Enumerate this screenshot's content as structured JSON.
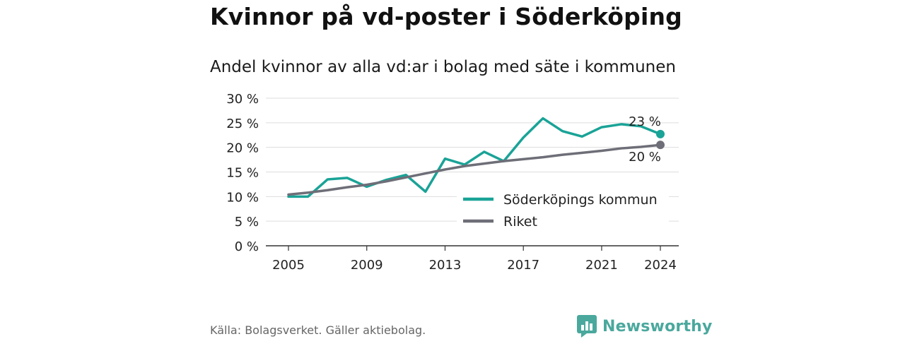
{
  "title": "Kvinnor på vd-poster i Söderköping",
  "subtitle": "Andel kvinnor av alla vd:ar i bolag med säte i kommunen",
  "source": "Källa: Bolagsverket. Gäller aktiebolag.",
  "brand": "Newsworthy",
  "colors": {
    "kommun": "#1aa397",
    "riket": "#6e6e78",
    "grid": "#dddddd",
    "brand": "#4aa89d"
  },
  "chart_data": {
    "type": "line",
    "title": "Andel kvinnor av alla vd:ar i bolag med säte i kommunen",
    "x": [
      2005,
      2006,
      2007,
      2008,
      2009,
      2010,
      2011,
      2012,
      2013,
      2014,
      2015,
      2016,
      2017,
      2018,
      2019,
      2020,
      2021,
      2022,
      2023,
      2024
    ],
    "series": [
      {
        "name": "Söderköpings kommun",
        "values": [
          10.0,
          10.0,
          13.5,
          13.8,
          12.0,
          13.4,
          14.4,
          11.0,
          17.7,
          16.5,
          19.1,
          17.2,
          22.0,
          25.9,
          23.3,
          22.2,
          24.1,
          24.7,
          24.3,
          22.7
        ]
      },
      {
        "name": "Riket",
        "values": [
          10.4,
          10.8,
          11.3,
          11.9,
          12.4,
          13.1,
          13.9,
          14.7,
          15.5,
          16.2,
          16.7,
          17.2,
          17.6,
          18.0,
          18.5,
          18.9,
          19.3,
          19.8,
          20.1,
          20.5
        ]
      }
    ],
    "end_labels": [
      "23 %",
      "20 %"
    ],
    "x_ticks": [
      2005,
      2009,
      2013,
      2017,
      2021,
      2024
    ],
    "x_tick_labels": [
      "2005",
      "2009",
      "2013",
      "2017",
      "2021",
      "2024"
    ],
    "y_ticks": [
      0,
      5,
      10,
      15,
      20,
      25,
      30
    ],
    "y_tick_labels": [
      "0 %",
      "5 %",
      "10 %",
      "15 %",
      "20 %",
      "25 %",
      "30 %"
    ],
    "xlabel": "",
    "ylabel": "",
    "xlim": [
      2005,
      2024
    ],
    "ylim": [
      0,
      30
    ],
    "grid": true,
    "legend_position": "bottom-right"
  }
}
